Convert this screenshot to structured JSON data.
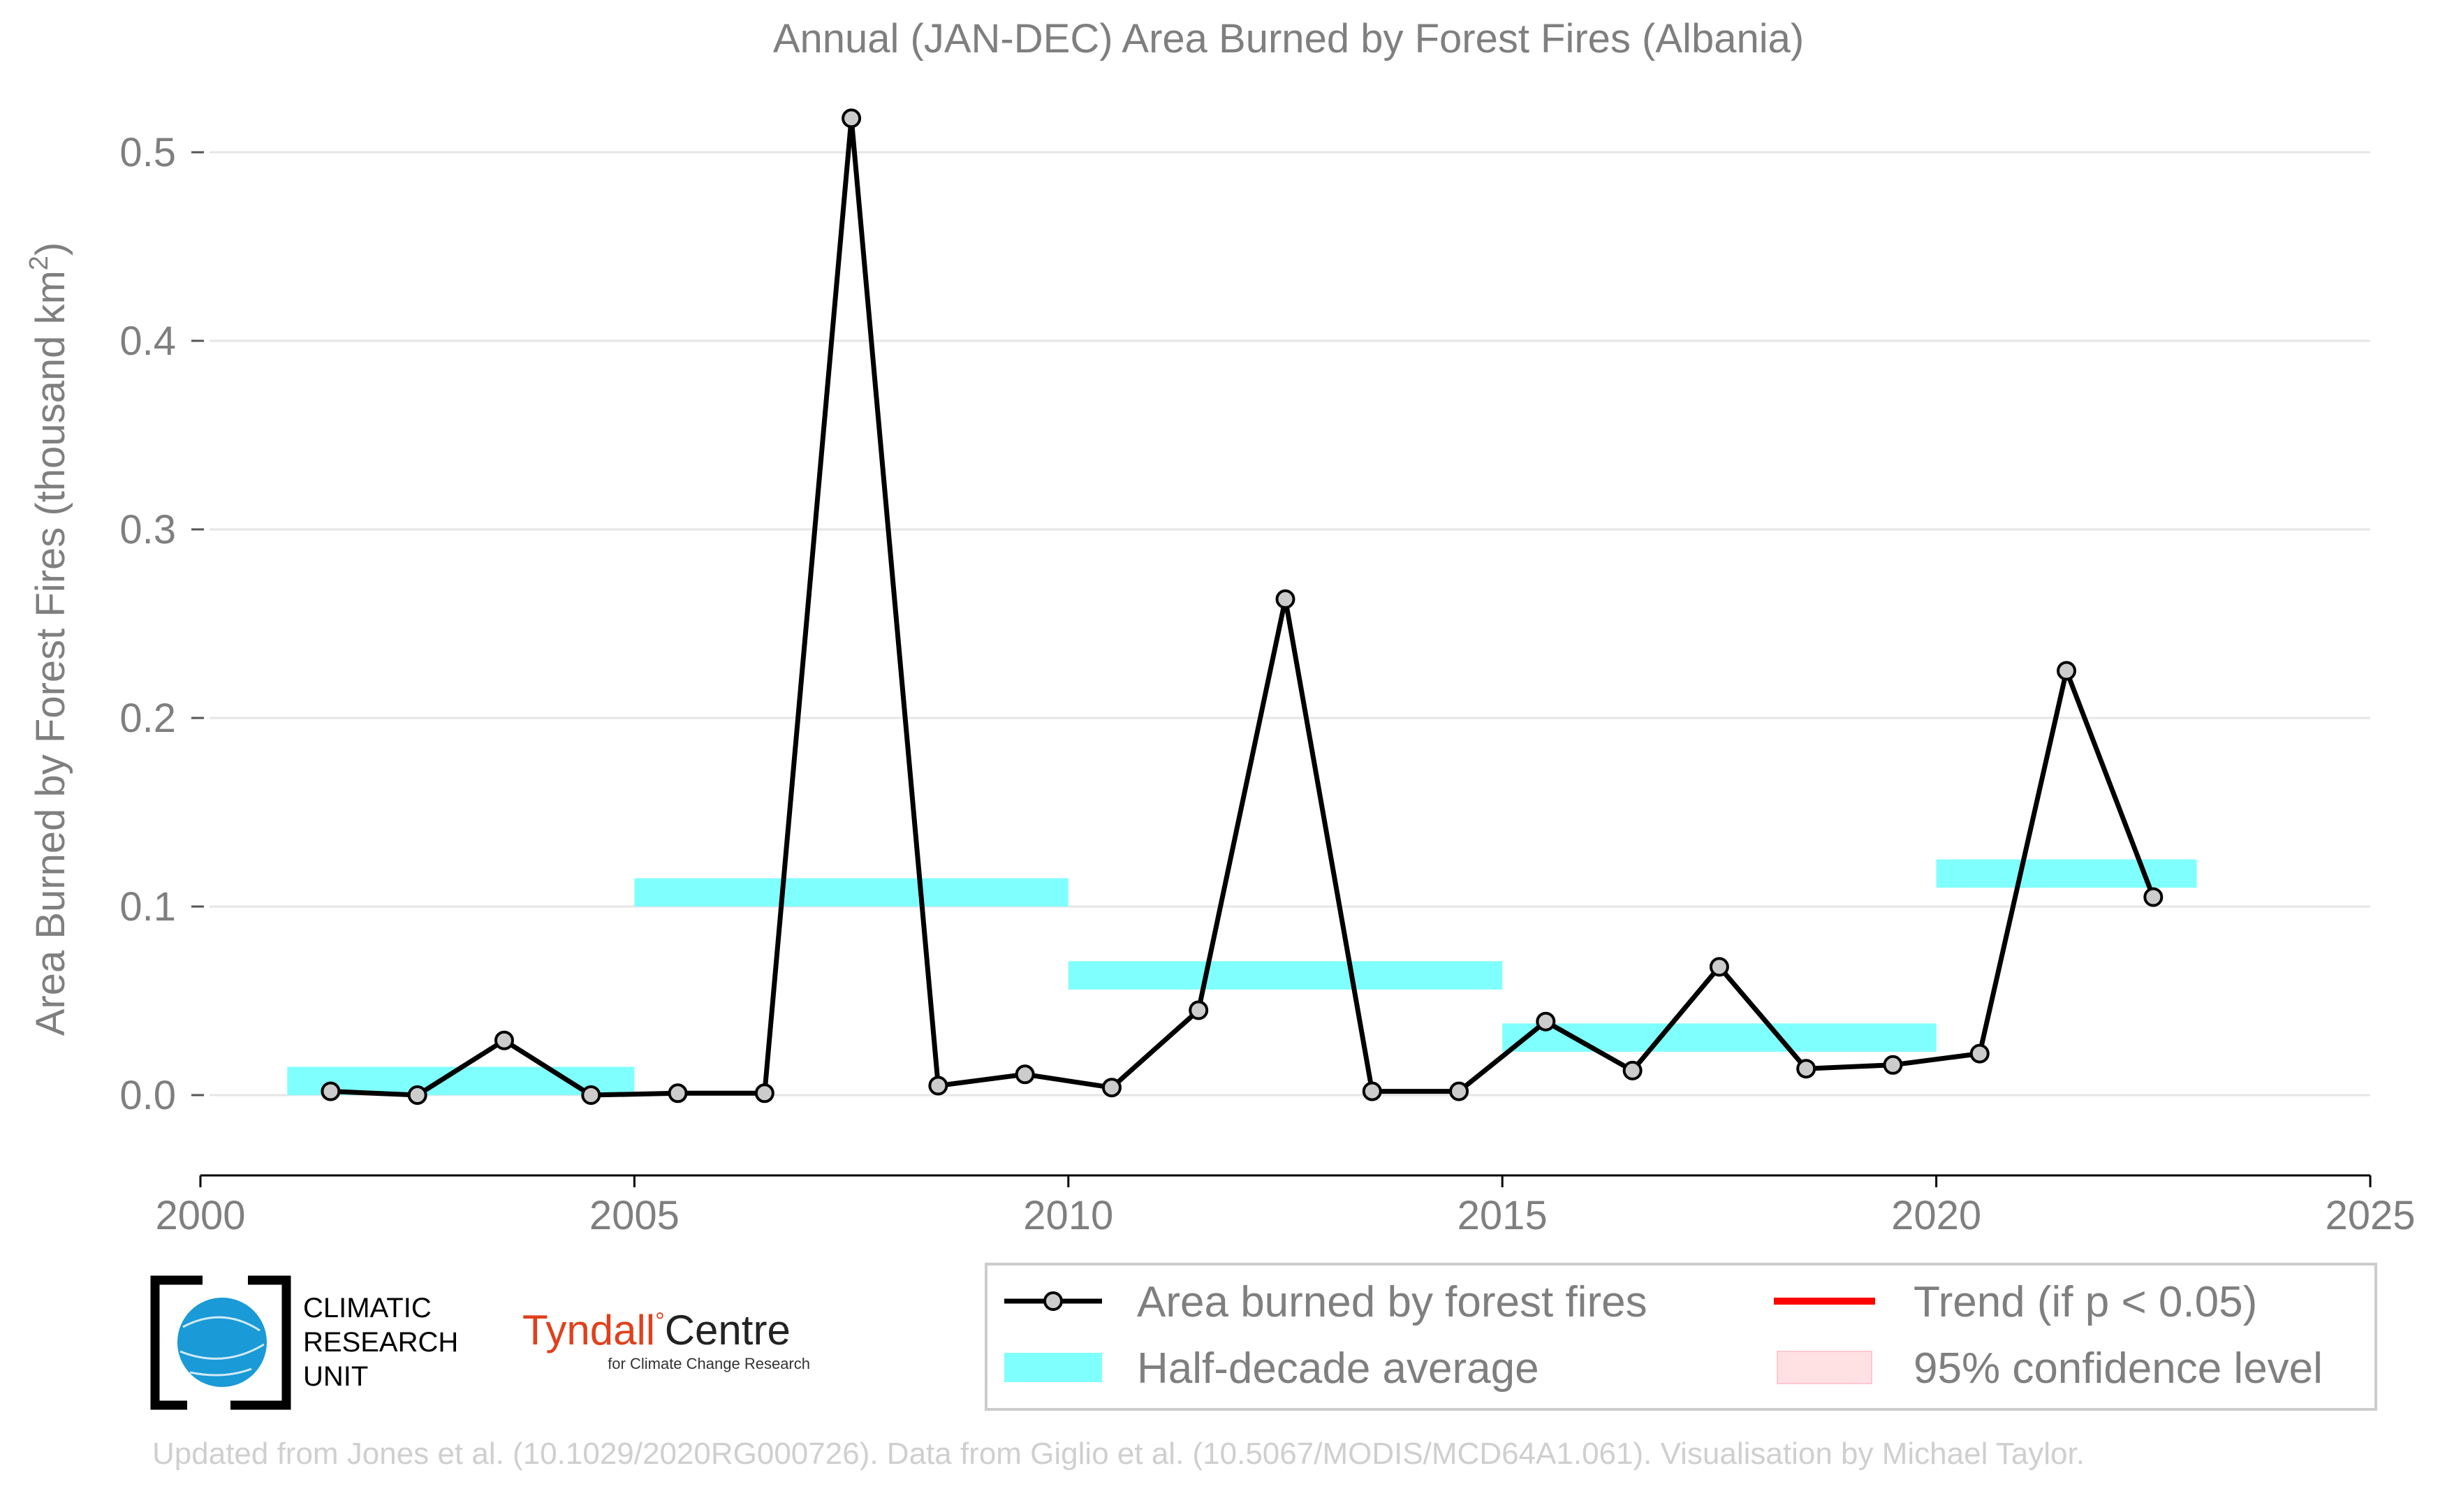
{
  "chart_data": {
    "type": "line",
    "title": "Annual (JAN-DEC) Area Burned by Forest Fires (Albania)",
    "ylabel": "Area Burned by Forest Fires (thousand km²)",
    "ylabel_base": "Area Burned by Forest Fires (thousand km",
    "ylabel_sup": "2",
    "ylabel_close": ")",
    "xlim": [
      2000,
      2025
    ],
    "ylim": [
      -0.04,
      0.53
    ],
    "x_ticks": [
      2000,
      2005,
      2010,
      2015,
      2020,
      2025
    ],
    "x_tick_labels": [
      "2000",
      "2005",
      "2010",
      "2015",
      "2020",
      "2025"
    ],
    "y_ticks": [
      0.0,
      0.1,
      0.2,
      0.3,
      0.4,
      0.5
    ],
    "y_tick_labels": [
      "0.0",
      "0.1",
      "0.2",
      "0.3",
      "0.4",
      "0.5"
    ],
    "grid": true,
    "legend_position": "bottom-right",
    "series": [
      {
        "name": "Area burned by forest fires",
        "color": "#000000",
        "marker_fill": "#cccccc",
        "x": [
          2001.5,
          2002.5,
          2003.5,
          2004.5,
          2005.5,
          2006.5,
          2007.5,
          2008.5,
          2009.5,
          2010.5,
          2011.5,
          2012.5,
          2013.5,
          2014.5,
          2015.5,
          2016.5,
          2017.5,
          2018.5,
          2019.5,
          2020.5,
          2021.5,
          2022.5
        ],
        "values": [
          0.002,
          0.0,
          0.029,
          0.0,
          0.001,
          0.001,
          0.518,
          0.005,
          0.011,
          0.004,
          0.045,
          0.263,
          0.002,
          0.002,
          0.039,
          0.013,
          0.068,
          0.014,
          0.016,
          0.022,
          0.225,
          0.105
        ]
      }
    ],
    "half_decade_averages": {
      "name": "Half-decade average",
      "color": "#80ffff",
      "periods": [
        {
          "start": 2001,
          "end": 2005,
          "low": 0.0,
          "high": 0.015
        },
        {
          "start": 2005,
          "end": 2010,
          "low": 0.1,
          "high": 0.115
        },
        {
          "start": 2010,
          "end": 2015,
          "low": 0.056,
          "high": 0.071
        },
        {
          "start": 2015,
          "end": 2020,
          "low": 0.023,
          "high": 0.038
        },
        {
          "start": 2020,
          "end": 2023,
          "low": 0.11,
          "high": 0.125
        }
      ]
    },
    "legend": {
      "series_label": "Area burned by forest fires",
      "half_decade_label": "Half-decade average",
      "trend_label": "Trend (if p < 0.05)",
      "ci_label": "95% confidence level",
      "trend_color": "#ff0000",
      "ci_color": "#ffe0e3"
    }
  },
  "logos": {
    "cru_line1": "CLIMATIC",
    "cru_line2": "RESEARCH",
    "cru_line3": "UNIT",
    "cru_color": "#1a9ad6",
    "tyndall_name": "Tyndall",
    "tyndall_degree": "°",
    "tyndall_centre": "Centre",
    "tyndall_sub": "for Climate Change Research",
    "tyndall_color": "#e0401c"
  },
  "credit": "Updated from Jones et al. (10.1029/2020RG000726). Data from Giglio et al. (10.5067/MODIS/MCD64A1.061). Visualisation by Michael Taylor."
}
